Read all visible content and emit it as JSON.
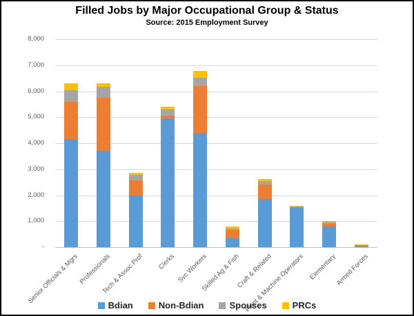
{
  "title": "Filled Jobs by Major Occupational Group & Status",
  "subtitle": "Source: 2015 Employment Survey",
  "colors": {
    "bdian": "#5B9BD5",
    "non_bdian": "#ED7D31",
    "spouses": "#A5A5A5",
    "prcs": "#FFC000",
    "gridline": "#D9D9D9",
    "axis_line": "#BFBFBF",
    "axis_text": "#595959",
    "title_text": "#000000"
  },
  "y_axis": {
    "ticks": [
      {
        "label": "8,000",
        "value": 8000
      },
      {
        "label": "7,000",
        "value": 7000
      },
      {
        "label": "6,000",
        "value": 6000
      },
      {
        "label": "5,000",
        "value": 5000
      },
      {
        "label": "4,000",
        "value": 4000
      },
      {
        "label": "3,000",
        "value": 3000
      },
      {
        "label": "2,000",
        "value": 2000
      },
      {
        "label": "1,000",
        "value": 1000
      },
      {
        "label": "-",
        "value": 0
      }
    ]
  },
  "chart_data": {
    "type": "bar",
    "stacked": true,
    "title": "Filled Jobs by Major Occupational Group & Status",
    "subtitle": "Source: 2015 Employment Survey",
    "xlabel": "",
    "ylabel": "",
    "ylim": [
      0,
      8000
    ],
    "grid": true,
    "legend_position": "bottom",
    "categories": [
      "Senior Officials & Mgrs",
      "Professionals",
      "Tech & Assoc Prof",
      "Clerks",
      "Svc Workers",
      "Skilled Ag & Fish",
      "Craft & Related",
      "Plant & Machine Operators",
      "Elementary",
      "Armed Forces"
    ],
    "series": [
      {
        "name": "Bdian",
        "color": "#5B9BD5",
        "values": [
          4150,
          3700,
          2000,
          4950,
          4400,
          350,
          1850,
          1500,
          800,
          30
        ]
      },
      {
        "name": "Non-Bdian",
        "color": "#ED7D31",
        "values": [
          1450,
          2050,
          575,
          100,
          1800,
          300,
          550,
          40,
          110,
          35
        ]
      },
      {
        "name": "Spouses",
        "color": "#A5A5A5",
        "values": [
          450,
          420,
          200,
          250,
          330,
          75,
          150,
          30,
          50,
          10
        ]
      },
      {
        "name": "PRCs",
        "color": "#FFC000",
        "values": [
          250,
          140,
          75,
          100,
          250,
          75,
          70,
          30,
          40,
          5
        ]
      }
    ]
  },
  "legend": {
    "items": [
      {
        "label": "Bdian",
        "color": "#5B9BD5"
      },
      {
        "label": "Non-Bdian",
        "color": "#ED7D31"
      },
      {
        "label": "Spouses",
        "color": "#A5A5A5"
      },
      {
        "label": "PRCs",
        "color": "#FFC000"
      }
    ]
  }
}
